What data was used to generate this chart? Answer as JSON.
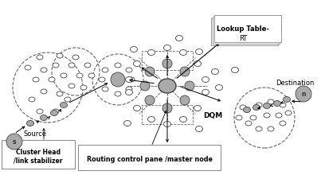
{
  "source_label": "Source",
  "dest_label": "Destination",
  "lookup_label1": "Lookup Table-",
  "lookup_label2": "RT",
  "dqm_label": "DQM",
  "cluster_label": "Cluster Head\n/link stabilizer",
  "routing_label": "Routing control pane /master node",
  "source_node_label": "s",
  "dest_node_label": "n",
  "gc": "#aaaaaa",
  "wc": "white",
  "ec": "#444444",
  "lc": "#666666"
}
